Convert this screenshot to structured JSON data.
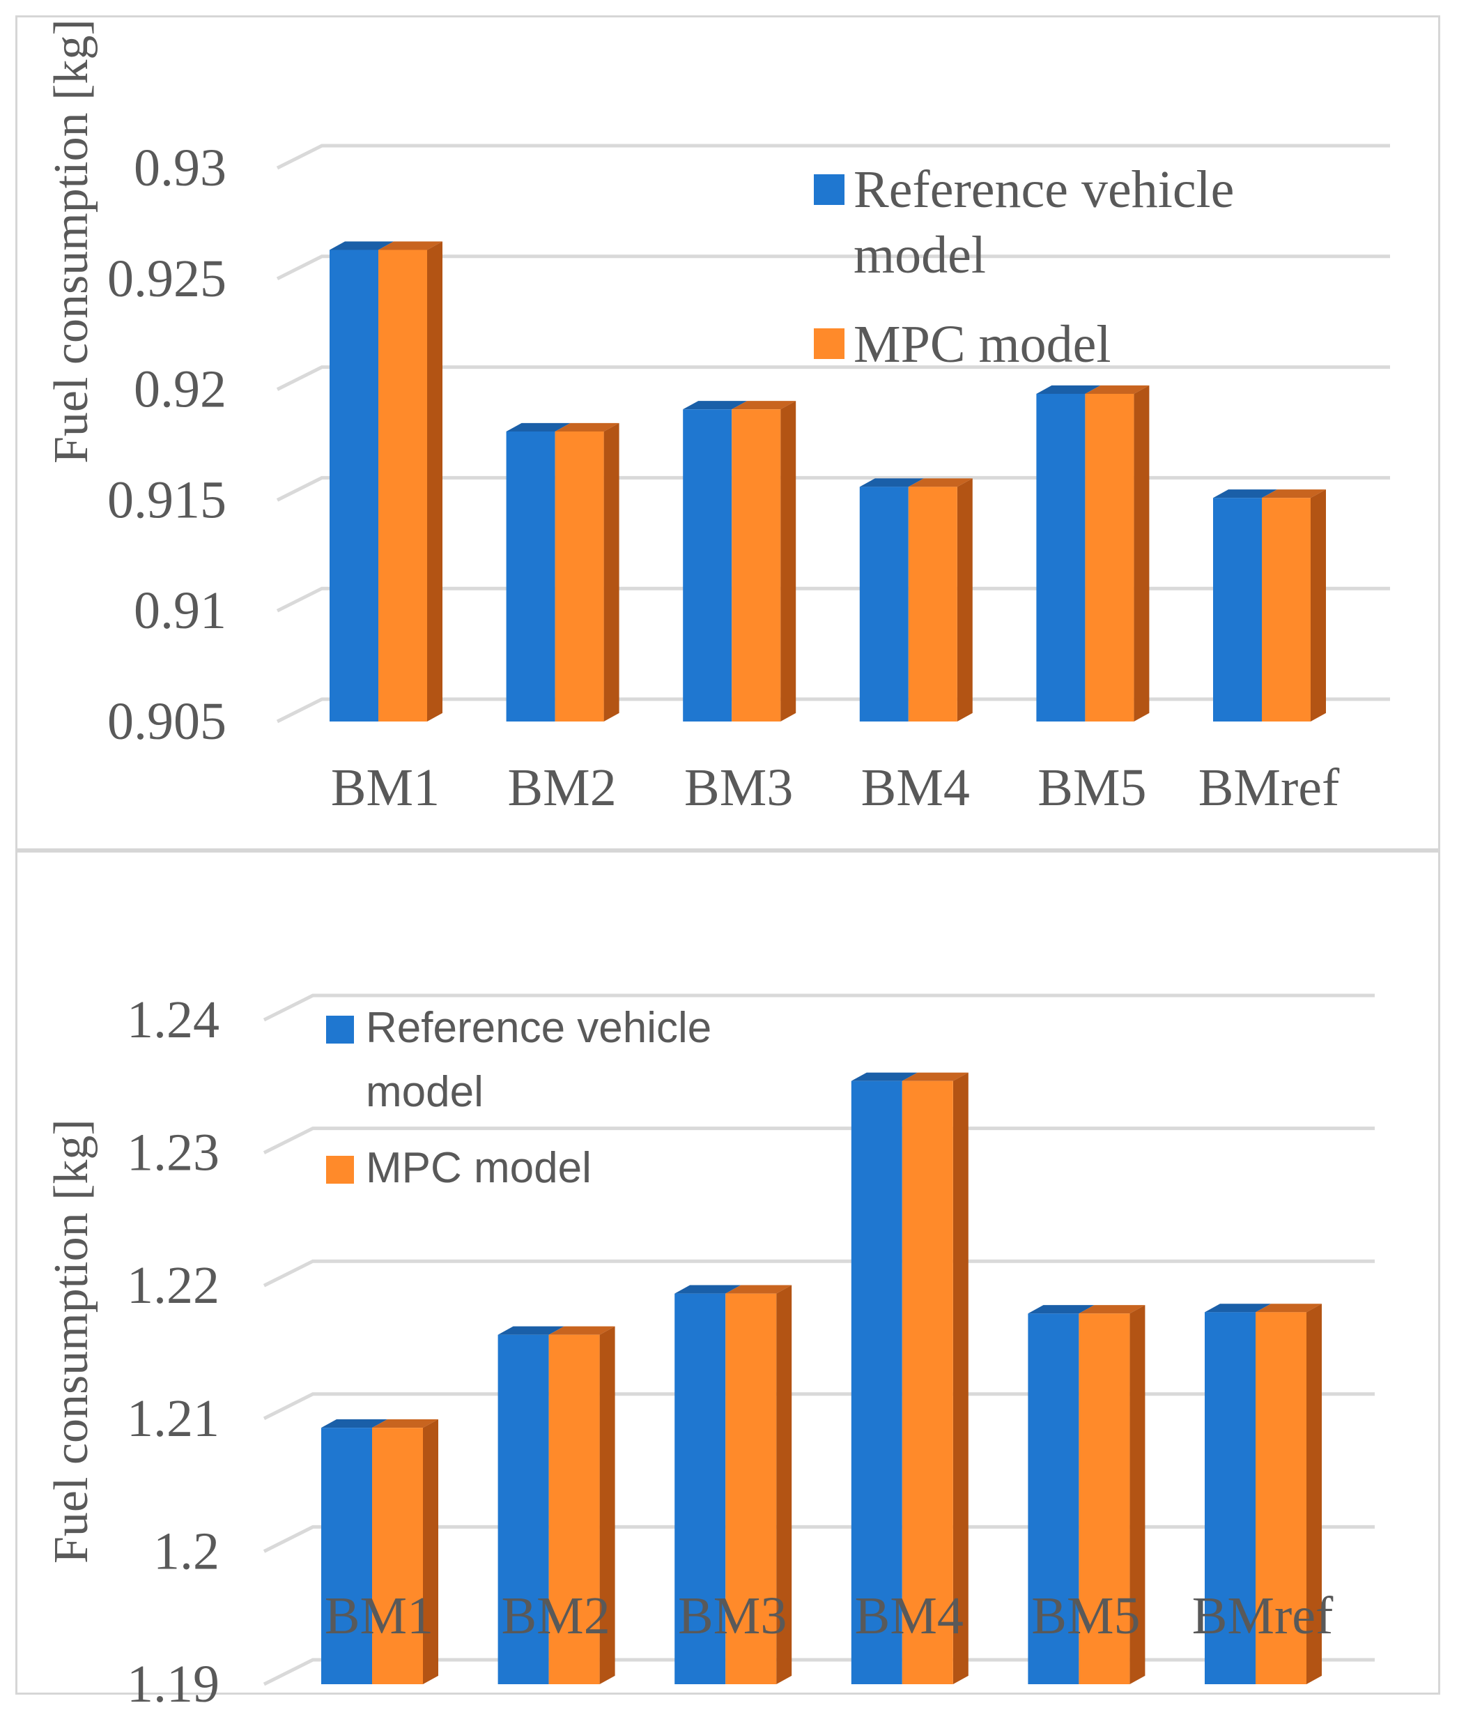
{
  "colors": {
    "reference": "#1f77d0",
    "reference_top": "#1a5fa8",
    "mpc": "#ff8a2a",
    "mpc_side": "#b35414",
    "mpc_top": "#c8641f",
    "grid": "#d9d9d9",
    "text": "#595959"
  },
  "chart_data": [
    {
      "type": "bar",
      "id": "top",
      "ylabel": "Fuel consumption [kg]",
      "xlabel": "",
      "ylim": [
        0.905,
        0.93
      ],
      "tick_step": 0.005,
      "tick_labels": [
        "0.905",
        "0.91",
        "0.915",
        "0.92",
        "0.925",
        "0.93"
      ],
      "categories": [
        "BM1",
        "BM2",
        "BM3",
        "BM4",
        "BM5",
        "BMref"
      ],
      "series": [
        {
          "name": "Reference vehicle model",
          "values": [
            0.9263,
            0.9181,
            0.9191,
            0.9156,
            0.9198,
            0.9151
          ]
        },
        {
          "name": "MPC model",
          "values": [
            0.9263,
            0.9181,
            0.9191,
            0.9156,
            0.9198,
            0.9151
          ]
        }
      ],
      "legend": {
        "position": "top-right",
        "reference_lines": [
          "Reference vehicle",
          "model"
        ],
        "mpc_label": "MPC model"
      }
    },
    {
      "type": "bar",
      "id": "bottom",
      "ylabel": "Fuel consumption [kg]",
      "xlabel": "",
      "ylim": [
        1.19,
        1.24
      ],
      "tick_step": 0.01,
      "tick_labels": [
        "1.19",
        "1.2",
        "1.21",
        "1.22",
        "1.23",
        "1.24"
      ],
      "categories": [
        "BM1",
        "BM2",
        "BM3",
        "BM4",
        "BM5",
        "BMref"
      ],
      "series": [
        {
          "name": "Reference vehicle model",
          "values": [
            1.2093,
            1.2163,
            1.2194,
            1.2354,
            1.2179,
            1.218
          ]
        },
        {
          "name": "MPC model",
          "values": [
            1.2093,
            1.2163,
            1.2194,
            1.2354,
            1.2179,
            1.218
          ]
        }
      ],
      "legend": {
        "position": "top-left",
        "reference_lines": [
          "Reference vehicle",
          "model"
        ],
        "mpc_label": "MPC model"
      }
    }
  ]
}
